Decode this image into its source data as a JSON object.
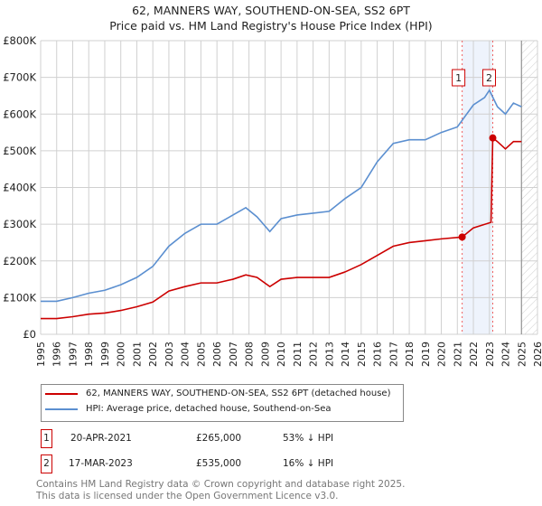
{
  "title": "62, MANNERS WAY, SOUTHEND-ON-SEA, SS2 6PT",
  "subtitle": "Price paid vs. HM Land Registry's House Price Index (HPI)",
  "chart_data": {
    "type": "line",
    "xlim": [
      1995,
      2026
    ],
    "ylim": [
      0,
      800000
    ],
    "x_ticks": [
      "1995",
      "1996",
      "1997",
      "1998",
      "1999",
      "2000",
      "2001",
      "2002",
      "2003",
      "2004",
      "2005",
      "2006",
      "2007",
      "2008",
      "2009",
      "2010",
      "2011",
      "2012",
      "2013",
      "2014",
      "2015",
      "2016",
      "2017",
      "2018",
      "2019",
      "2020",
      "2021",
      "2022",
      "2023",
      "2024",
      "2025",
      "2026"
    ],
    "y_ticks": [
      {
        "v": 0,
        "l": "£0"
      },
      {
        "v": 100000,
        "l": "£100K"
      },
      {
        "v": 200000,
        "l": "£200K"
      },
      {
        "v": 300000,
        "l": "£300K"
      },
      {
        "v": 400000,
        "l": "£400K"
      },
      {
        "v": 500000,
        "l": "£500K"
      },
      {
        "v": 600000,
        "l": "£600K"
      },
      {
        "v": 700000,
        "l": "£700K"
      },
      {
        "v": 800000,
        "l": "£800K"
      }
    ],
    "series": [
      {
        "name": "62, MANNERS WAY, SOUTHEND-ON-SEA, SS2 6PT (detached house)",
        "color": "#cc0000",
        "x": [
          1995,
          1996,
          1997,
          1998,
          1999,
          2000,
          2001,
          2002,
          2003,
          2004,
          2005,
          2006,
          2007,
          2007.8,
          2008.5,
          2009.3,
          2010,
          2011,
          2012,
          2013,
          2014,
          2015,
          2016,
          2017,
          2018,
          2019,
          2020,
          2021.3,
          2022,
          2023.1,
          2023.21,
          2023.5,
          2024,
          2024.5,
          2025
        ],
        "y": [
          43000,
          43000,
          48000,
          55000,
          58000,
          65000,
          75000,
          88000,
          118000,
          130000,
          140000,
          140000,
          150000,
          162000,
          155000,
          130000,
          150000,
          155000,
          155000,
          155000,
          170000,
          190000,
          215000,
          240000,
          250000,
          255000,
          260000,
          265000,
          290000,
          305000,
          535000,
          525000,
          505000,
          525000,
          525000
        ]
      },
      {
        "name": "HPI: Average price, detached house, Southend-on-Sea",
        "color": "#5b8fd0",
        "x": [
          1995,
          1996,
          1997,
          1998,
          1999,
          2000,
          2001,
          2002,
          2003,
          2004,
          2005,
          2006,
          2007,
          2007.8,
          2008.5,
          2009.3,
          2010,
          2011,
          2012,
          2013,
          2014,
          2015,
          2016,
          2017,
          2018,
          2019,
          2020,
          2021,
          2022,
          2022.7,
          2023,
          2023.5,
          2024,
          2024.5,
          2025
        ],
        "y": [
          90000,
          90000,
          100000,
          112000,
          120000,
          135000,
          155000,
          185000,
          240000,
          275000,
          300000,
          300000,
          325000,
          345000,
          320000,
          280000,
          315000,
          325000,
          330000,
          335000,
          370000,
          400000,
          470000,
          520000,
          530000,
          530000,
          550000,
          565000,
          625000,
          645000,
          665000,
          620000,
          600000,
          630000,
          620000
        ]
      }
    ],
    "sales": [
      {
        "label": "1",
        "x": 2021.3,
        "y": 265000
      },
      {
        "label": "2",
        "x": 2023.21,
        "y": 535000
      }
    ],
    "shaded_range": [
      2021.3,
      2023.21
    ],
    "hatched_from": 2025
  },
  "legend": [
    "62, MANNERS WAY, SOUTHEND-ON-SEA, SS2 6PT (detached house)",
    "HPI: Average price, detached house, Southend-on-Sea"
  ],
  "transactions": [
    {
      "num": "1",
      "date": "20-APR-2021",
      "price": "£265,000",
      "hpi": "53% ↓ HPI"
    },
    {
      "num": "2",
      "date": "17-MAR-2023",
      "price": "£535,000",
      "hpi": "16% ↓ HPI"
    }
  ],
  "footer": [
    "Contains HM Land Registry data © Crown copyright and database right 2025.",
    "This data is licensed under the Open Government Licence v3.0."
  ]
}
